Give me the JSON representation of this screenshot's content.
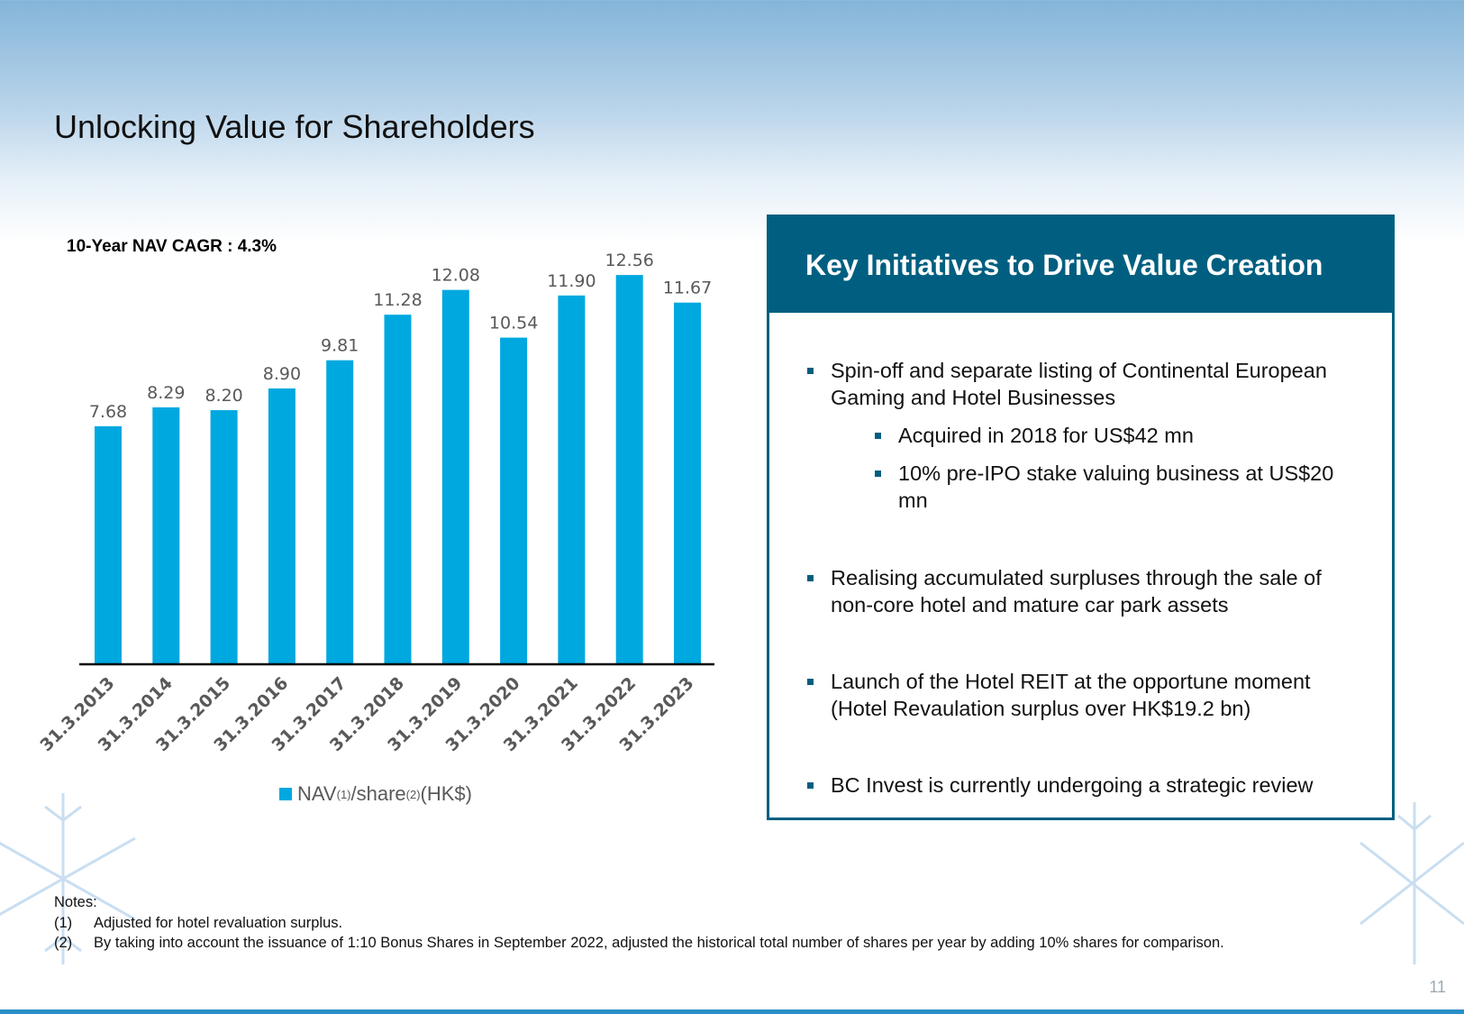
{
  "slide": {
    "title": "Unlocking Value for Shareholders",
    "page_number": "11"
  },
  "cagr_label": "10-Year NAV CAGR : 4.3%",
  "legend": {
    "prefix": "NAV",
    "sup1": "(1)",
    "middle": "/share",
    "sup2": "(2)",
    "suffix": "(HK$)"
  },
  "chart_data": {
    "type": "bar",
    "categories": [
      "31.3.2013",
      "31.3.2014",
      "31.3.2015",
      "31.3.2016",
      "31.3.2017",
      "31.3.2018",
      "31.3.2019",
      "31.3.2020",
      "31.3.2021",
      "31.3.2022",
      "31.3.2023"
    ],
    "series": [
      {
        "name": "NAV(1)/share(2)(HK$)",
        "values": [
          7.68,
          8.29,
          8.2,
          8.9,
          9.81,
          11.28,
          12.08,
          10.54,
          11.9,
          12.56,
          11.67
        ],
        "labels": [
          "7.68",
          "8.29",
          "8.20",
          "8.90",
          "9.81",
          "11.28",
          "12.08",
          "10.54",
          "11.90",
          "12.56",
          "11.67"
        ]
      }
    ],
    "ylim": [
      0,
      13
    ],
    "grid": false,
    "legend_position": "bottom",
    "colors": {
      "bar": "#00a8e0",
      "axis": "#000000",
      "data_label": "#595959",
      "tick_label": "#595959"
    }
  },
  "panel": {
    "header": "Key Initiatives to Drive Value Creation",
    "bullets": [
      {
        "text": "Spin-off and separate listing of Continental European Gaming and Hotel Businesses",
        "level": 1
      },
      {
        "text": "Acquired in 2018 for US$42 mn",
        "level": 2
      },
      {
        "text": "10% pre-IPO stake valuing business at US$20 mn",
        "level": 2
      },
      {
        "text": "Realising accumulated surpluses through the sale of non-core hotel and mature car park assets",
        "level": 1
      },
      {
        "text": "Launch of the Hotel REIT at the opportune moment (Hotel Revaulation surplus over HK$19.2 bn)",
        "level": 1
      },
      {
        "text": "BC Invest is currently undergoing a strategic review",
        "level": 1
      }
    ]
  },
  "notes": {
    "heading": "Notes:",
    "items": [
      {
        "num": "(1)",
        "text": "Adjusted for hotel revaluation surplus."
      },
      {
        "num": "(2)",
        "text": "By taking into account the issuance of 1:10 Bonus Shares in September 2022, adjusted the historical total number of shares per year by adding 10% shares for comparison."
      }
    ]
  },
  "theme": {
    "accent": "#005f80",
    "bar_color": "#00a8e0"
  }
}
